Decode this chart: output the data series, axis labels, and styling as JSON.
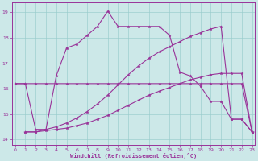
{
  "xlabel": "Windchill (Refroidissement éolien,°C)",
  "background_color": "#cce8e8",
  "line_color": "#993399",
  "x_ticks": [
    0,
    1,
    2,
    3,
    4,
    5,
    6,
    7,
    8,
    9,
    10,
    11,
    12,
    13,
    14,
    15,
    16,
    17,
    18,
    19,
    20,
    21,
    22,
    23
  ],
  "y_ticks": [
    14,
    15,
    16,
    17,
    18,
    19
  ],
  "ylim": [
    13.8,
    19.4
  ],
  "xlim": [
    -0.3,
    23.3
  ],
  "series": [
    {
      "x": [
        0,
        1,
        2,
        3,
        4,
        5,
        6,
        7,
        8,
        9,
        10,
        11,
        12,
        13,
        14,
        15,
        16,
        17,
        18,
        19,
        20,
        21,
        22,
        23
      ],
      "y": [
        16.2,
        16.2,
        16.2,
        16.2,
        16.2,
        16.2,
        16.2,
        16.2,
        16.2,
        16.2,
        16.2,
        16.2,
        16.2,
        16.2,
        16.2,
        16.2,
        16.2,
        16.2,
        16.2,
        16.2,
        16.2,
        16.2,
        16.2,
        14.3
      ]
    },
    {
      "x": [
        1,
        2,
        3,
        4,
        5,
        6,
        7,
        8,
        9,
        10,
        11,
        12,
        13,
        14,
        15,
        16,
        17,
        18,
        19,
        20,
        21,
        22,
        23
      ],
      "y": [
        14.3,
        14.3,
        14.35,
        14.4,
        14.45,
        14.55,
        14.65,
        14.8,
        14.95,
        15.15,
        15.35,
        15.55,
        15.75,
        15.9,
        16.05,
        16.2,
        16.35,
        16.45,
        16.55,
        16.6,
        16.6,
        16.6,
        14.3
      ]
    },
    {
      "x": [
        1,
        2,
        3,
        4,
        5,
        6,
        7,
        8,
        9,
        10,
        11,
        12,
        13,
        14,
        15,
        16,
        17,
        18,
        19,
        20,
        21,
        22,
        23
      ],
      "y": [
        14.3,
        14.3,
        14.4,
        14.5,
        14.65,
        14.85,
        15.1,
        15.4,
        15.75,
        16.15,
        16.55,
        16.9,
        17.2,
        17.45,
        17.65,
        17.85,
        18.05,
        18.2,
        18.35,
        18.45,
        14.8,
        14.8,
        14.3
      ]
    },
    {
      "x": [
        0,
        1,
        2,
        3,
        4,
        5,
        6,
        7,
        8,
        9,
        10,
        11,
        12,
        13,
        14,
        15,
        16,
        17,
        18,
        19,
        20,
        21,
        22,
        23
      ],
      "y": [
        16.2,
        16.2,
        14.4,
        14.4,
        16.5,
        17.6,
        17.75,
        18.1,
        18.45,
        19.05,
        18.45,
        18.45,
        18.45,
        18.45,
        18.45,
        18.1,
        16.65,
        16.5,
        16.1,
        15.5,
        15.5,
        14.8,
        14.8,
        14.3
      ]
    }
  ]
}
